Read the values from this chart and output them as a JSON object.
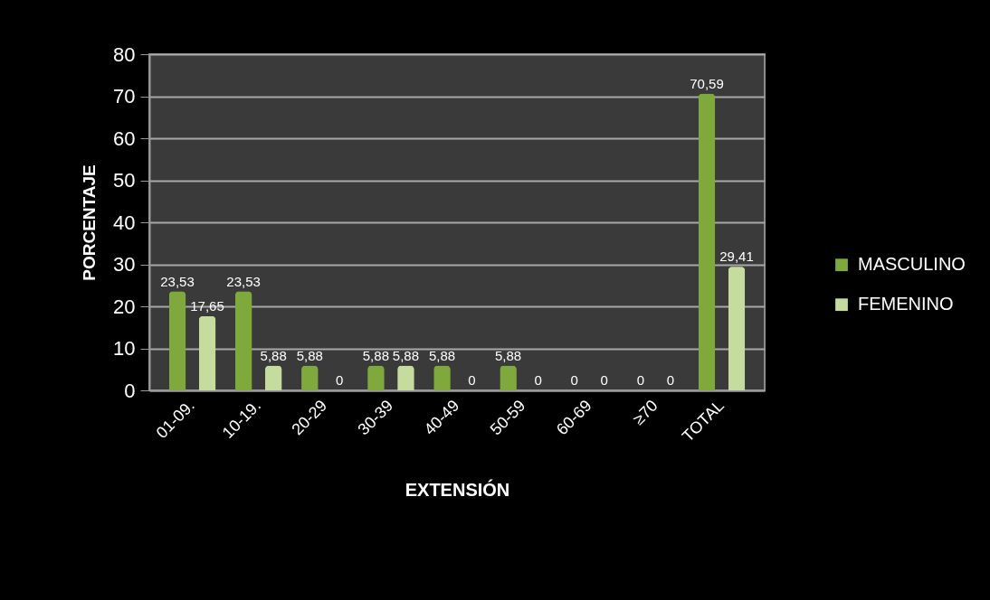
{
  "chart_data": {
    "type": "bar",
    "xlabel": "EXTENSIÓN",
    "ylabel": "PORCENTAJE",
    "categories": [
      "01-09.",
      "10-19.",
      "20-29",
      "30-39",
      "40-49",
      "50-59",
      "60-69",
      "≥70",
      "TOTAL"
    ],
    "series": [
      {
        "name": "MASCULINO",
        "color": "#7fa93c",
        "values": [
          23.53,
          23.53,
          5.88,
          5.88,
          5.88,
          5.88,
          0,
          0,
          70.59
        ],
        "value_labels": [
          "23,53",
          "23,53",
          "5,88",
          "5,88",
          "5,88",
          "5,88",
          "0",
          "0",
          "70,59"
        ]
      },
      {
        "name": "FEMENINO",
        "color": "#c6dc9e",
        "values": [
          17.65,
          5.88,
          0,
          5.88,
          0,
          0,
          0,
          0,
          29.41
        ],
        "value_labels": [
          "17,65",
          "5,88",
          "0",
          "5,88",
          "0",
          "0",
          "0",
          "0",
          "29,41"
        ]
      }
    ],
    "ylim": [
      0,
      80
    ],
    "yticks": [
      0,
      10,
      20,
      30,
      40,
      50,
      60,
      70,
      80
    ],
    "grid": "y",
    "legend": "right"
  }
}
